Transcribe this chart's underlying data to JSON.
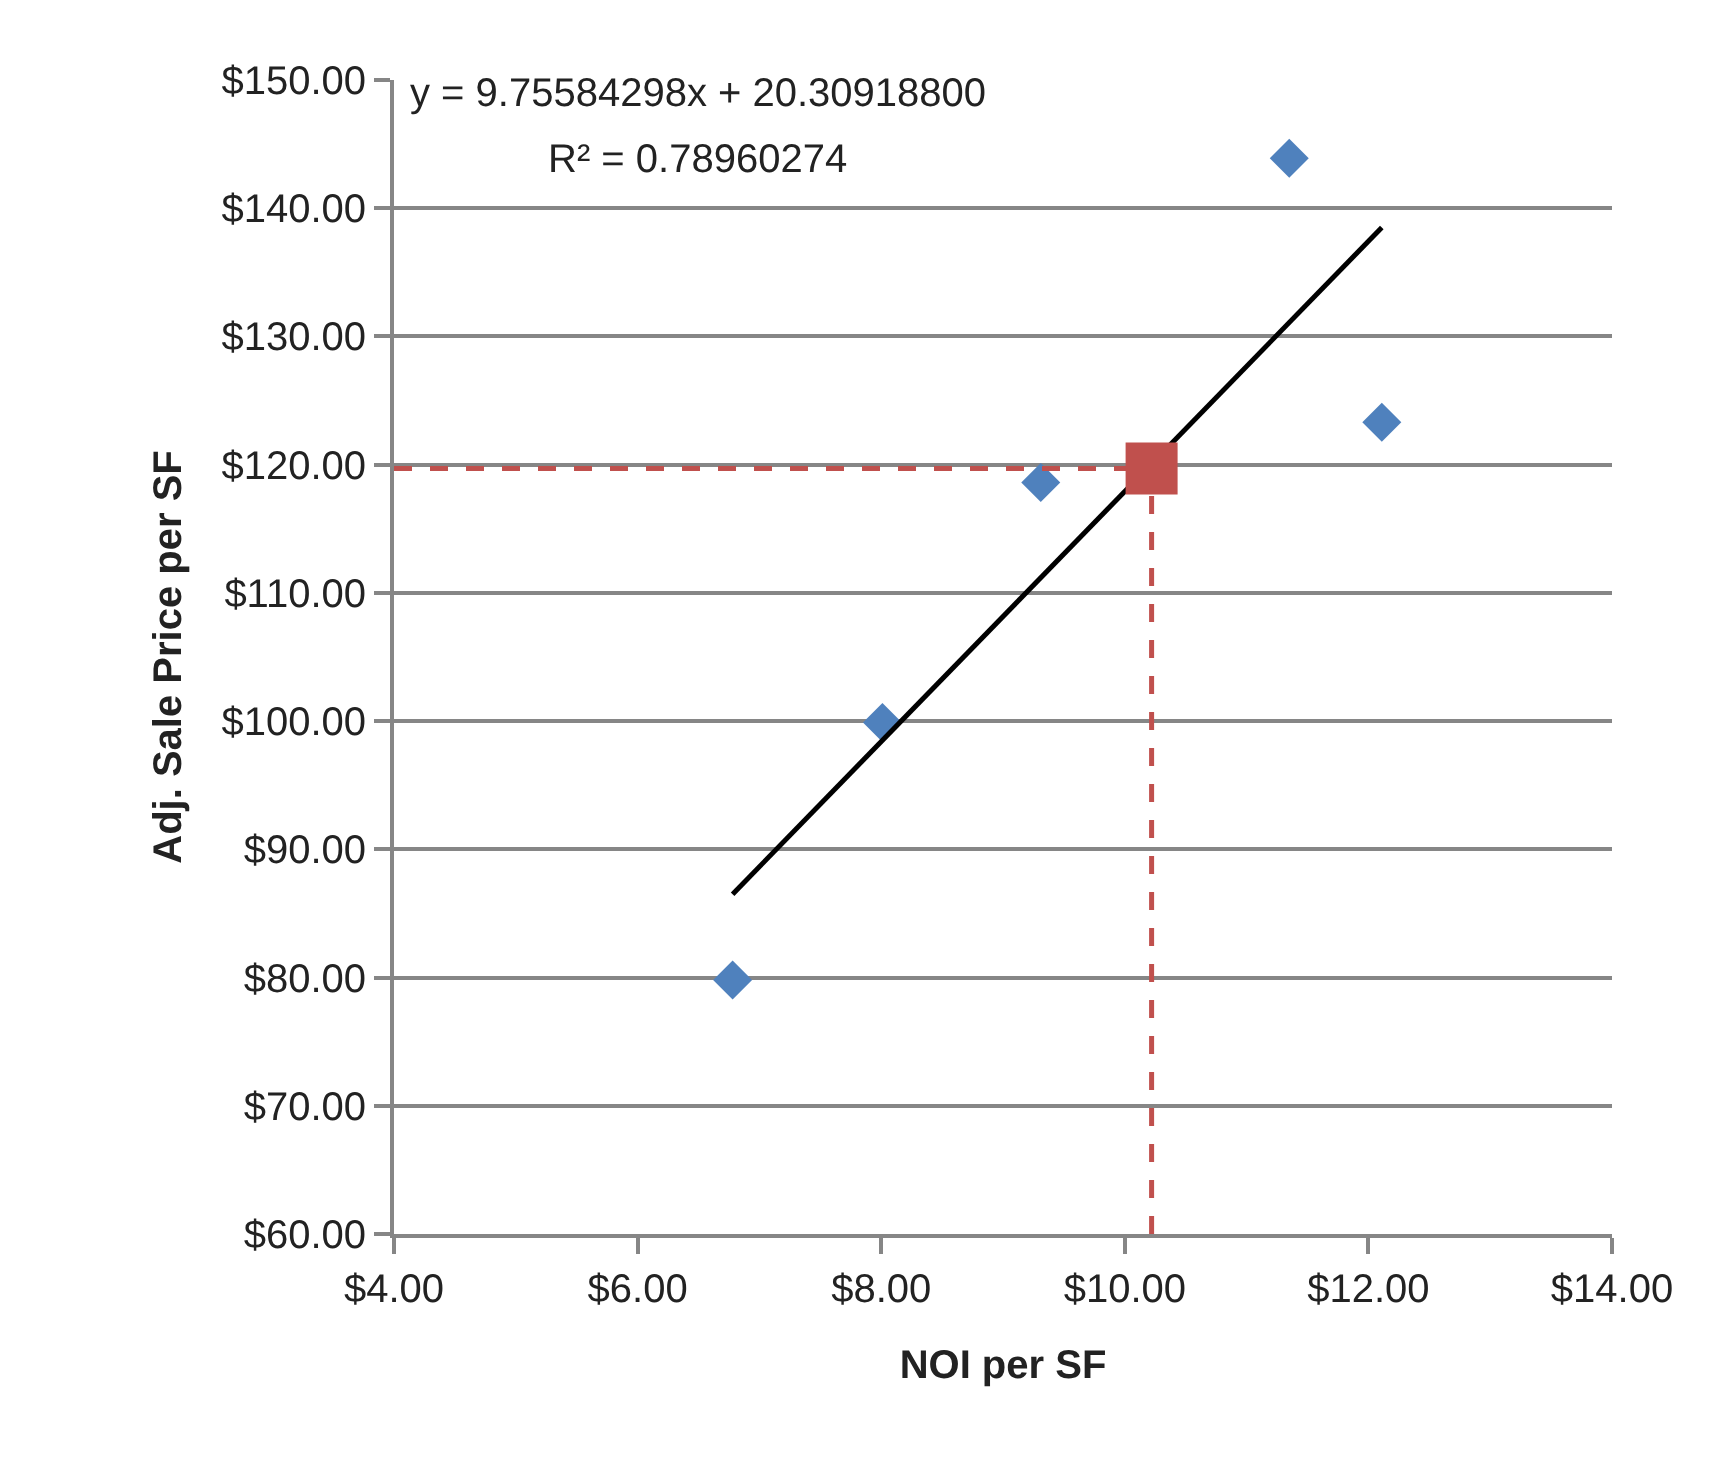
{
  "chart_data": {
    "type": "scatter",
    "xlabel": "NOI per SF",
    "ylabel": "Adj. Sale Price per SF",
    "annotations": [
      "y = 9.75584298x + 20.30918800",
      "R² = 0.78960274"
    ],
    "series": [
      {
        "marker": "diamond",
        "color": "#4f81bd",
        "x": [
          6.78,
          8.01,
          9.31,
          11.35,
          12.11
        ],
        "values": [
          79.8,
          99.9,
          118.6,
          143.9,
          123.3
        ]
      },
      {
        "type": "line",
        "marker": "none",
        "line_style": "solid",
        "color": "#000000",
        "x": [
          6.78,
          12.11
        ],
        "values": [
          86.5,
          138.5
        ]
      },
      {
        "type": "line",
        "marker": "none",
        "line_style": "dashed",
        "color": "#c0504d",
        "x": [
          4,
          10.22
        ],
        "values": [
          119.7,
          119.7
        ]
      },
      {
        "type": "line",
        "marker": "none",
        "line_style": "dashed",
        "color": "#c0504d",
        "x": [
          10.22,
          10.22
        ],
        "values": [
          60,
          119.7
        ]
      },
      {
        "marker": "square",
        "color": "#c0504d",
        "x": [
          10.22
        ],
        "values": [
          119.7
        ]
      }
    ],
    "xlim": [
      4,
      14
    ],
    "xticks": [
      {
        "value": 4,
        "label": "$4.00"
      },
      {
        "value": 6,
        "label": "$6.00"
      },
      {
        "value": 8,
        "label": "$8.00"
      },
      {
        "value": 10,
        "label": "$10.00"
      },
      {
        "value": 12,
        "label": "$12.00"
      },
      {
        "value": 14,
        "label": "$14.00"
      }
    ],
    "ylim": [
      60,
      150
    ],
    "yticks": [
      {
        "value": 60,
        "label": "$60.00"
      },
      {
        "value": 70,
        "label": "$70.00"
      },
      {
        "value": 80,
        "label": "$80.00"
      },
      {
        "value": 90,
        "label": "$90.00"
      },
      {
        "value": 100,
        "label": "$100.00"
      },
      {
        "value": 110,
        "label": "$110.00"
      },
      {
        "value": 120,
        "label": "$120.00"
      },
      {
        "value": 130,
        "label": "$130.00"
      },
      {
        "value": 140,
        "label": "$140.00"
      },
      {
        "value": 150,
        "label": "$150.00"
      }
    ],
    "grid": "y"
  }
}
